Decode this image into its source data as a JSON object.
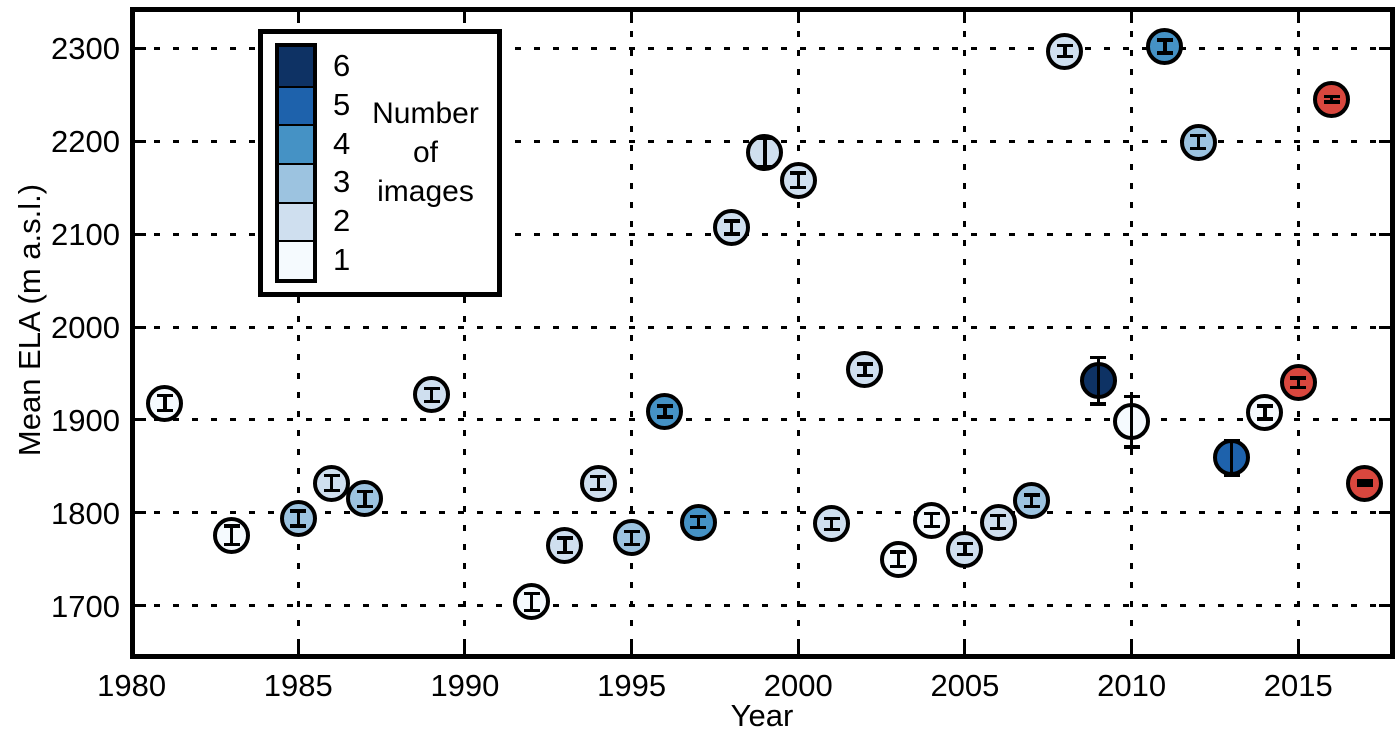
{
  "figure": {
    "x_axis_label": "Year",
    "y_axis_label": "Mean ELA (m a.s.l.)",
    "x_tick_labels": [
      "1980",
      "1985",
      "1990",
      "1995",
      "2000",
      "2005",
      "2010",
      "2015"
    ],
    "y_tick_labels": [
      "2300",
      "2200",
      "2100",
      "2000",
      "1900",
      "1800",
      "1700"
    ]
  },
  "legend": {
    "title_lines": [
      "Number",
      "of",
      "images"
    ],
    "levels": [
      {
        "label": "6",
        "color": "#0e3264"
      },
      {
        "label": "5",
        "color": "#1e62ac"
      },
      {
        "label": "4",
        "color": "#4592c5"
      },
      {
        "label": "3",
        "color": "#9cc3e0"
      },
      {
        "label": "2",
        "color": "#cfdfef"
      },
      {
        "label": "1",
        "color": "#f5fafe"
      }
    ]
  },
  "colors": {
    "outline": "#000000",
    "red_marker": "#d9473e",
    "grid": "#000000"
  },
  "chart_data": {
    "type": "scatter",
    "title": "",
    "xlabel": "Year",
    "ylabel": "Mean ELA (m a.s.l.)",
    "xlim": [
      1980,
      2018
    ],
    "ylim": [
      1650,
      2340
    ],
    "grid": "dotted, at every tick on both axes",
    "legend_position": "upper left",
    "color_encoding": "marker fill = number of images (1 light to 6 dark blue); 2015-2017 markers are red",
    "points": [
      {
        "year": 1981,
        "ela": 1918,
        "images": 1,
        "err": 8
      },
      {
        "year": 1983,
        "ela": 1776,
        "images": 1,
        "err": 10
      },
      {
        "year": 1985,
        "ela": 1794,
        "images": 3,
        "err": 8
      },
      {
        "year": 1986,
        "ela": 1832,
        "images": 2,
        "err": 8
      },
      {
        "year": 1987,
        "ela": 1815,
        "images": 3,
        "err": 8
      },
      {
        "year": 1989,
        "ela": 1927,
        "images": 2,
        "err": 7
      },
      {
        "year": 1992,
        "ela": 1704,
        "images": 1,
        "err": 9
      },
      {
        "year": 1993,
        "ela": 1765,
        "images": 2,
        "err": 8
      },
      {
        "year": 1994,
        "ela": 1832,
        "images": 2,
        "err": 7
      },
      {
        "year": 1995,
        "ela": 1773,
        "images": 3,
        "err": 7
      },
      {
        "year": 1996,
        "ela": 1909,
        "images": 4,
        "err": 6
      },
      {
        "year": 1997,
        "ela": 1790,
        "images": 4,
        "err": 6
      },
      {
        "year": 1998,
        "ela": 2107,
        "images": 2,
        "err": 7
      },
      {
        "year": 1999,
        "ela": 2188,
        "images": 2,
        "err": 15
      },
      {
        "year": 2000,
        "ela": 2158,
        "images": 2,
        "err": 8
      },
      {
        "year": 2001,
        "ela": 1788,
        "images": 2,
        "err": 6
      },
      {
        "year": 2002,
        "ela": 1954,
        "images": 2,
        "err": 6
      },
      {
        "year": 2003,
        "ela": 1750,
        "images": 1,
        "err": 8
      },
      {
        "year": 2004,
        "ela": 1792,
        "images": 1,
        "err": 7
      },
      {
        "year": 2005,
        "ela": 1761,
        "images": 2,
        "err": 6
      },
      {
        "year": 2006,
        "ela": 1790,
        "images": 2,
        "err": 7
      },
      {
        "year": 2007,
        "ela": 1813,
        "images": 3,
        "err": 6
      },
      {
        "year": 2008,
        "ela": 2297,
        "images": 2,
        "err": 6
      },
      {
        "year": 2009,
        "ela": 1942,
        "images": 6,
        "err": 25
      },
      {
        "year": 2010,
        "ela": 1898,
        "images": 1,
        "err": 27
      },
      {
        "year": 2011,
        "ela": 2302,
        "images": 4,
        "err": 7
      },
      {
        "year": 2012,
        "ela": 2199,
        "images": 3,
        "err": 7
      },
      {
        "year": 2013,
        "ela": 1859,
        "images": 5,
        "err": 19
      },
      {
        "year": 2014,
        "ela": 1908,
        "images": 1,
        "err": 7
      },
      {
        "year": 2015,
        "ela": 1940,
        "images": "red",
        "err": 5
      },
      {
        "year": 2016,
        "ela": 2245,
        "images": "red",
        "err": 3
      },
      {
        "year": 2017,
        "ela": 1832,
        "images": "red",
        "err": 2
      }
    ]
  }
}
